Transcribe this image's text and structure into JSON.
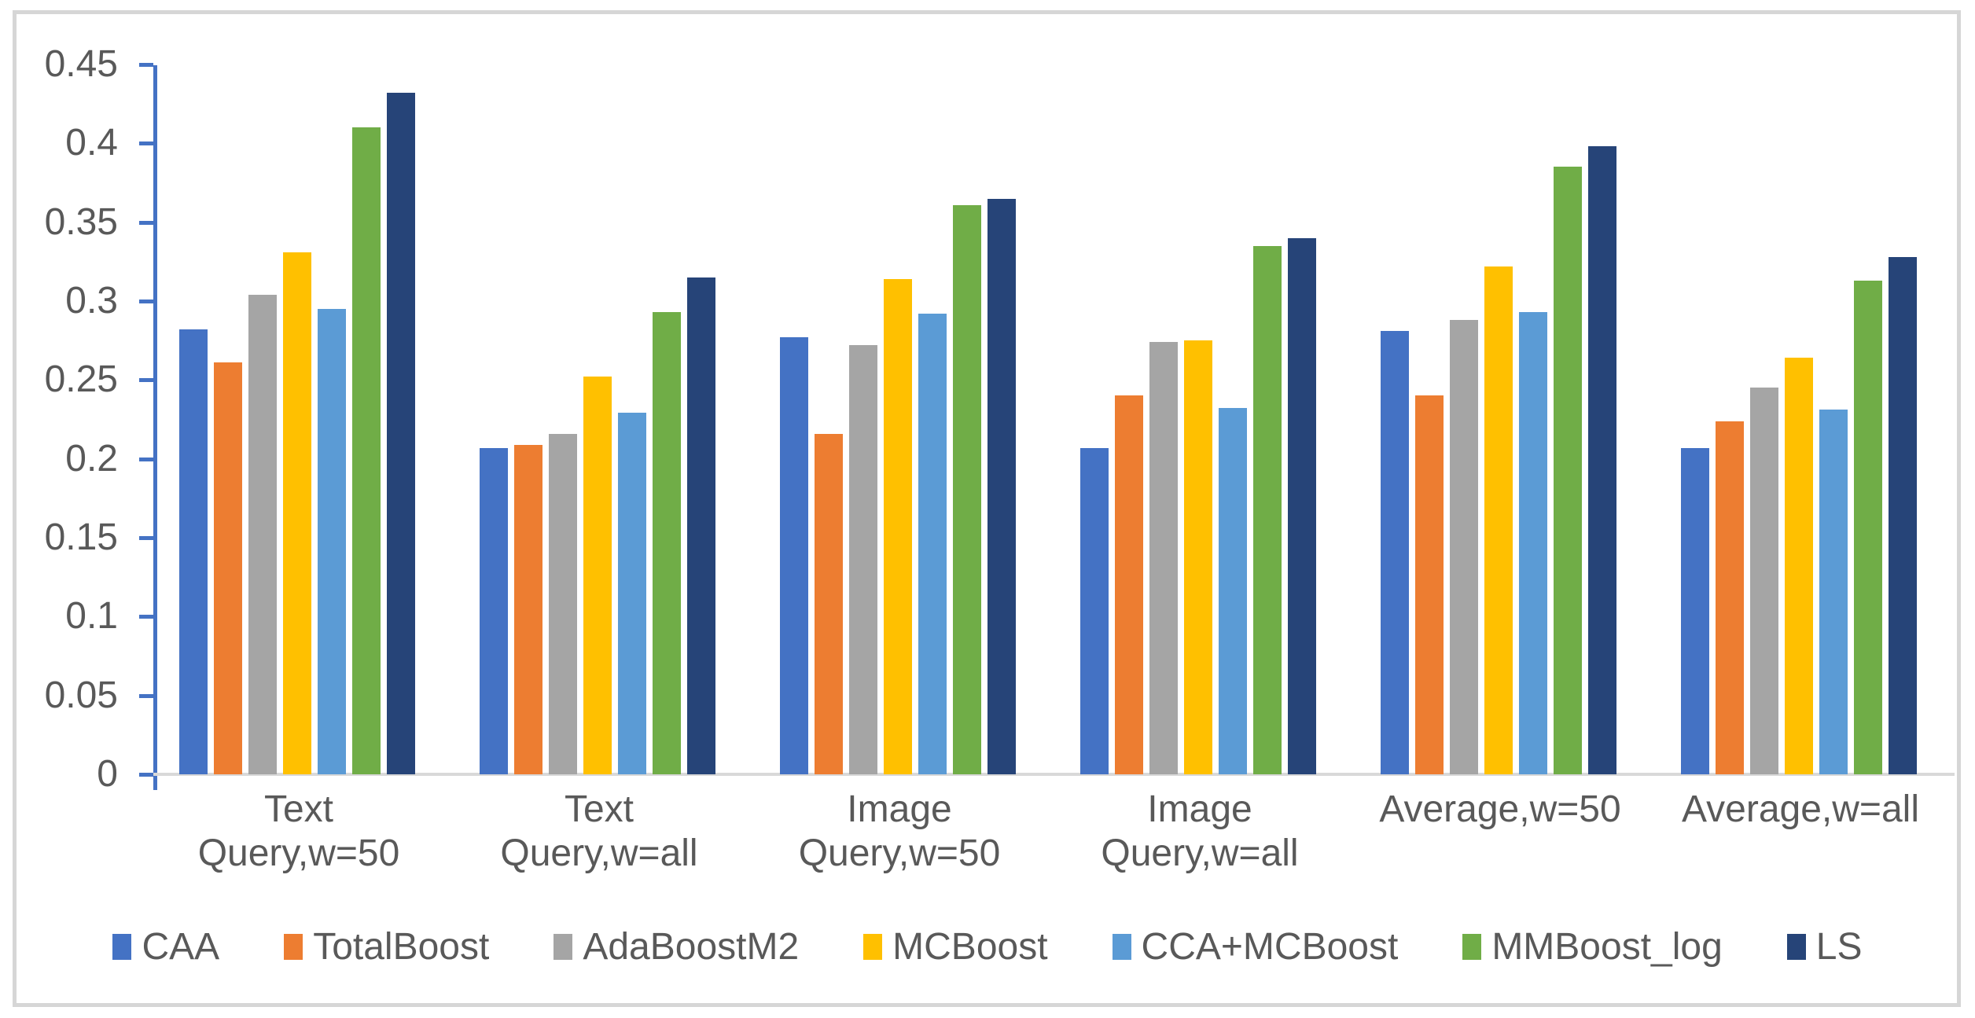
{
  "chart_data": {
    "type": "bar",
    "title": "",
    "xlabel": "",
    "ylabel": "",
    "ylim": [
      0,
      0.45
    ],
    "grid": false,
    "legend_position": "bottom",
    "y_ticks": [
      {
        "label": "0.45",
        "value": 0.45
      },
      {
        "label": "0.4",
        "value": 0.4
      },
      {
        "label": "0.35",
        "value": 0.35
      },
      {
        "label": "0.3",
        "value": 0.3
      },
      {
        "label": "0.25",
        "value": 0.25
      },
      {
        "label": "0.2",
        "value": 0.2
      },
      {
        "label": "0.15",
        "value": 0.15
      },
      {
        "label": "0.1",
        "value": 0.1
      },
      {
        "label": "0.05",
        "value": 0.05
      },
      {
        "label": "0",
        "value": 0
      }
    ],
    "categories": [
      "Text\nQuery,w=50",
      "Text\nQuery,w=all",
      "Image\nQuery,w=50",
      "Image\nQuery,w=all",
      "Average,w=50",
      "Average,w=all"
    ],
    "series": [
      {
        "name": "CAA",
        "color": "#4472C4",
        "values": [
          0.282,
          0.207,
          0.277,
          0.207,
          0.281,
          0.207
        ]
      },
      {
        "name": "TotalBoost",
        "color": "#ED7D31",
        "values": [
          0.261,
          0.209,
          0.216,
          0.24,
          0.24,
          0.224
        ]
      },
      {
        "name": "AdaBoostM2",
        "color": "#A5A5A5",
        "values": [
          0.304,
          0.216,
          0.272,
          0.274,
          0.288,
          0.245
        ]
      },
      {
        "name": "MCBoost",
        "color": "#FFC000",
        "values": [
          0.331,
          0.252,
          0.314,
          0.275,
          0.322,
          0.264
        ]
      },
      {
        "name": "CCA+MCBoost",
        "color": "#5B9BD5",
        "values": [
          0.295,
          0.229,
          0.292,
          0.232,
          0.293,
          0.231
        ]
      },
      {
        "name": "MMBoost_log",
        "color": "#70AD47",
        "values": [
          0.41,
          0.293,
          0.361,
          0.335,
          0.385,
          0.313
        ]
      },
      {
        "name": "LS",
        "color": "#264478",
        "values": [
          0.432,
          0.315,
          0.365,
          0.34,
          0.398,
          0.328
        ]
      }
    ],
    "colors": {
      "axis_line": "#4472C4",
      "baseline": "#D9D9D9",
      "text": "#595959",
      "frame_border": "#D6D6D6"
    }
  }
}
